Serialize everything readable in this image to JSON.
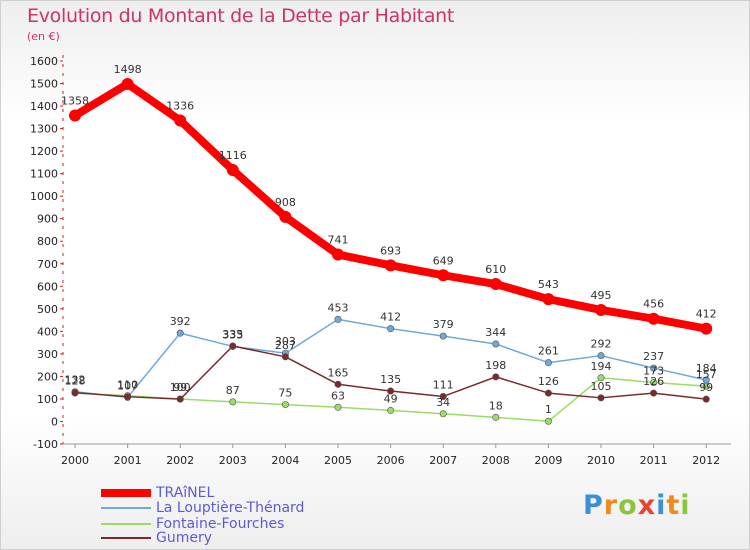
{
  "title": "Evolution du Montant de la Dette par Habitant",
  "subtitle": "(en €)",
  "logo": {
    "letters": [
      "P",
      "r",
      "o",
      "x",
      "i",
      "t",
      "i"
    ],
    "colors": [
      "#3b8fd9",
      "#f08a1c",
      "#8bc53f",
      "#e8452c",
      "#3b8fd9",
      "#f08a1c",
      "#8bc53f"
    ]
  },
  "chart_data": {
    "type": "line",
    "x": [
      "2000",
      "2001",
      "2002",
      "2003",
      "2004",
      "2005",
      "2006",
      "2007",
      "2008",
      "2009",
      "2010",
      "2011",
      "2012"
    ],
    "ylim": [
      -100,
      1600
    ],
    "yticks": [
      -100,
      0,
      100,
      200,
      300,
      400,
      500,
      600,
      700,
      800,
      900,
      1000,
      1100,
      1200,
      1300,
      1400,
      1500,
      1600
    ],
    "grid": false,
    "legend_position": "bottom-left",
    "series": [
      {
        "name": "TRAîNEL",
        "color": "#ff0000",
        "width": 8,
        "values": [
          1358,
          1498,
          1336,
          1116,
          908,
          741,
          693,
          649,
          610,
          543,
          495,
          456,
          412
        ],
        "labels": [
          "1358",
          "1498",
          "1336",
          "1116",
          "908",
          "741",
          "693",
          "649",
          "610",
          "543",
          "495",
          "456",
          "412"
        ]
      },
      {
        "name": "La Louptière-Thénard",
        "color": "#6fa8dc",
        "width": 1.5,
        "values": [
          132,
          107,
          392,
          333,
          303,
          453,
          412,
          379,
          344,
          261,
          292,
          237,
          184
        ],
        "labels": [
          "132",
          "107",
          "392",
          "333",
          "303",
          "453",
          "412",
          "379",
          "344",
          "261",
          "292",
          "237",
          "184"
        ]
      },
      {
        "name": "Fontaine-Fourches",
        "color": "#99dd66",
        "width": 1.5,
        "values": [
          126,
          114,
          100,
          87,
          75,
          63,
          49,
          34,
          18,
          1,
          194,
          173,
          157
        ],
        "labels": [
          "",
          "",
          "100",
          "87",
          "75",
          "63",
          "49",
          "34",
          "18",
          "1",
          "194",
          "173",
          "157"
        ]
      },
      {
        "name": "Gumery",
        "color": "#7a2a2a",
        "width": 1.5,
        "values": [
          128,
          110,
          99,
          335,
          287,
          165,
          135,
          111,
          198,
          126,
          105,
          126,
          99
        ],
        "labels": [
          "128",
          "110",
          "99",
          "335",
          "287",
          "165",
          "135",
          "111",
          "198",
          "126",
          "105",
          "126",
          "99"
        ]
      }
    ]
  }
}
